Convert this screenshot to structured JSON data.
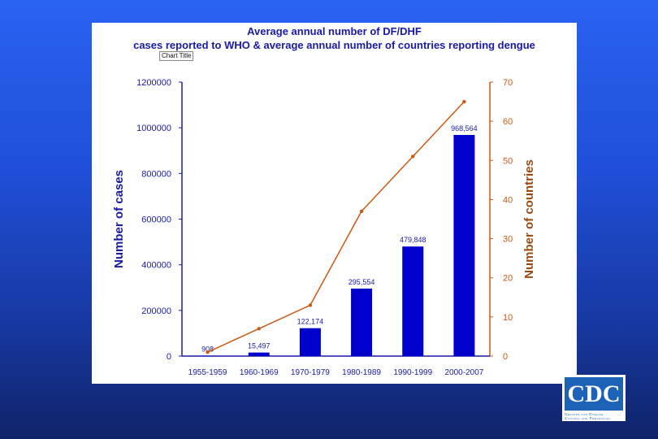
{
  "slide": {
    "background_top": "#2a62f2",
    "background_bottom": "#0f2468"
  },
  "chart_tooltip": "Chart Title",
  "logo": {
    "text": "CDC",
    "subtitle_line1": "Centers for Disease",
    "subtitle_line2": "Control and Prevention",
    "color": "#1c63b7"
  },
  "chart_data": {
    "type": "bar",
    "title_line1": "Average annual number of DF/DHF",
    "title_line2": "cases reported to WHO & average annual number of countries reporting dengue",
    "categories": [
      "1955-1959",
      "1960-1969",
      "1970-1979",
      "1980-1989",
      "1990-1999",
      "2000-2007"
    ],
    "series": [
      {
        "name": "Number of cases",
        "type": "bar",
        "axis": "left",
        "color": "#0000cc",
        "values": [
          908,
          15497,
          122174,
          295554,
          479848,
          968564
        ],
        "labels": [
          "908",
          "15,497",
          "122,174",
          "295,554",
          "479,848",
          "968,564"
        ]
      },
      {
        "name": "Number of countries",
        "type": "line",
        "axis": "right",
        "color": "#cc5a14",
        "values": [
          1,
          7,
          13,
          37,
          51,
          65
        ]
      }
    ],
    "ylabel": "Number of cases",
    "ylim": [
      0,
      1200000
    ],
    "yticks": [
      "0",
      "200000",
      "400000",
      "600000",
      "800000",
      "1000000",
      "1200000"
    ],
    "y2label": "Number of countries",
    "y2lim": [
      0,
      70
    ],
    "y2ticks": [
      "0",
      "10",
      "20",
      "30",
      "40",
      "50",
      "60",
      "70"
    ],
    "grid": false,
    "legend": "none"
  }
}
